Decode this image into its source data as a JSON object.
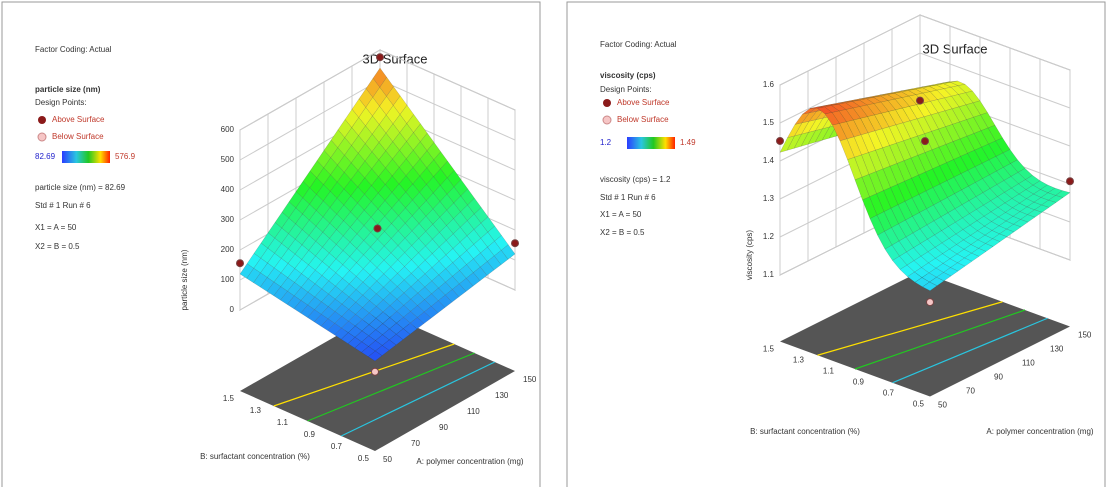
{
  "chart_data": [
    {
      "type": "surface3d",
      "title": "3D Surface",
      "factor_coding": "Factor Coding: Actual",
      "response": "particle size (nm)",
      "design_points": "Design Points:",
      "legend": [
        "Above Surface",
        "Below Surface"
      ],
      "color_range": [
        82.69,
        576.9
      ],
      "info": [
        "particle size (nm) = 82.69",
        "Std # 1 Run # 6",
        "X1 = A = 50",
        "X2 = B = 0.5"
      ],
      "xlabel": "A: polymer concentration (mg)",
      "ylabel": "B: surfactant concentration (%)",
      "zlabel": "particle size (nm)",
      "xlim": [
        50,
        150
      ],
      "xticks": [
        50,
        70,
        90,
        110,
        130,
        150
      ],
      "ylim": [
        0.5,
        1.5
      ],
      "yticks": [
        0.5,
        0.7,
        0.9,
        1.1,
        1.3,
        1.5
      ],
      "zlim": [
        0,
        600
      ],
      "zticks": [
        0,
        100,
        200,
        300,
        400,
        500,
        600
      ]
    },
    {
      "type": "surface3d",
      "title": "3D Surface",
      "factor_coding": "Factor Coding: Actual",
      "response": "viscosity (cps)",
      "design_points": "Design Points:",
      "legend": [
        "Above Surface",
        "Below Surface"
      ],
      "color_range": [
        1.2,
        1.49
      ],
      "info": [
        "viscosity (cps) = 1.2",
        "Std # 1 Run # 6",
        "X1 = A = 50",
        "X2 = B = 0.5"
      ],
      "xlabel": "A: polymer concentration (mg)",
      "ylabel": "B: surfactant concentration (%)",
      "zlabel": "viscosity (cps)",
      "xlim": [
        50,
        150
      ],
      "xticks": [
        50,
        70,
        90,
        110,
        130,
        150
      ],
      "ylim": [
        0.5,
        1.5
      ],
      "yticks": [
        0.5,
        0.7,
        0.9,
        1.1,
        1.3,
        1.5
      ],
      "zlim": [
        1.1,
        1.6
      ],
      "zticks": [
        1.1,
        1.2,
        1.3,
        1.4,
        1.5,
        1.6
      ]
    }
  ]
}
